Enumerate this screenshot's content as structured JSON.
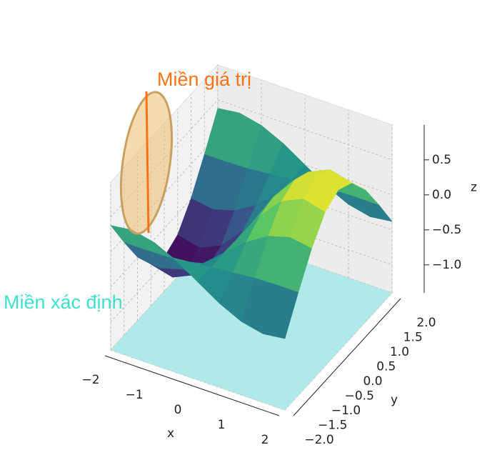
{
  "chart_data": {
    "type": "surface3d",
    "annotations": [
      "Miền giá trị",
      "Miền xác định"
    ],
    "xlabel": "x",
    "ylabel": "y",
    "zlabel": "z",
    "xlim": [
      -2,
      2
    ],
    "ylim": [
      -2,
      2
    ],
    "zlim": [
      -1.4,
      1
    ],
    "xticks": [
      {
        "value": -2,
        "label": "−2"
      },
      {
        "value": -1,
        "label": "−1"
      },
      0,
      1,
      2
    ],
    "yticks": [
      {
        "value": -2,
        "label": "−2.0"
      },
      {
        "value": -1.5,
        "label": "−1.5"
      },
      {
        "value": -1,
        "label": "−1.0"
      },
      {
        "value": -0.5,
        "label": "−0.5"
      },
      {
        "value": 0,
        "label": "0.0"
      },
      0.5,
      {
        "value": 1,
        "label": "1.0"
      },
      1.5,
      {
        "value": 2,
        "label": "2.0"
      }
    ],
    "zticks": [
      0.5,
      {
        "value": 0,
        "label": "0.0"
      },
      {
        "value": -0.5,
        "label": "−0.5"
      },
      {
        "value": -1,
        "label": "−1.0"
      }
    ],
    "x": [
      -2,
      -1.5,
      -1,
      -0.5,
      0,
      0.5,
      1,
      1.5,
      2
    ],
    "y": [
      -2,
      -1.5,
      -1,
      -0.5,
      0,
      0.5,
      1,
      1.5,
      2
    ],
    "z": [
      [
        0.38,
        0.42,
        0.35,
        0.2,
        0,
        -0.2,
        -0.35,
        -0.42,
        -0.38
      ],
      [
        -0.07,
        -0.07,
        -0.06,
        -0.03,
        0,
        0.03,
        0.06,
        0.07,
        0.07
      ],
      [
        -0.49,
        -0.54,
        -0.45,
        -0.26,
        0,
        0.26,
        0.45,
        0.54,
        0.49
      ],
      [
        -0.8,
        -0.88,
        -0.74,
        -0.42,
        0,
        0.42,
        0.74,
        0.88,
        0.8
      ],
      [
        -0.91,
        -1.0,
        -0.84,
        -0.48,
        0,
        0.48,
        0.84,
        1.0,
        0.91
      ],
      [
        -0.8,
        -0.88,
        -0.74,
        -0.42,
        0,
        0.42,
        0.74,
        0.88,
        0.8
      ],
      [
        -0.49,
        -0.54,
        -0.45,
        -0.26,
        0,
        0.26,
        0.45,
        0.54,
        0.49
      ],
      [
        -0.07,
        -0.07,
        -0.06,
        -0.03,
        0,
        0.03,
        0.06,
        0.07,
        0.07
      ],
      [
        0.38,
        0.42,
        0.35,
        0.2,
        0,
        -0.2,
        -0.35,
        -0.42,
        -0.38
      ]
    ],
    "colormap": [
      "#440154",
      "#3b528b",
      "#21918c",
      "#5ec962",
      "#fde725"
    ],
    "domain_color": "#a8e8e8",
    "grid": true
  }
}
